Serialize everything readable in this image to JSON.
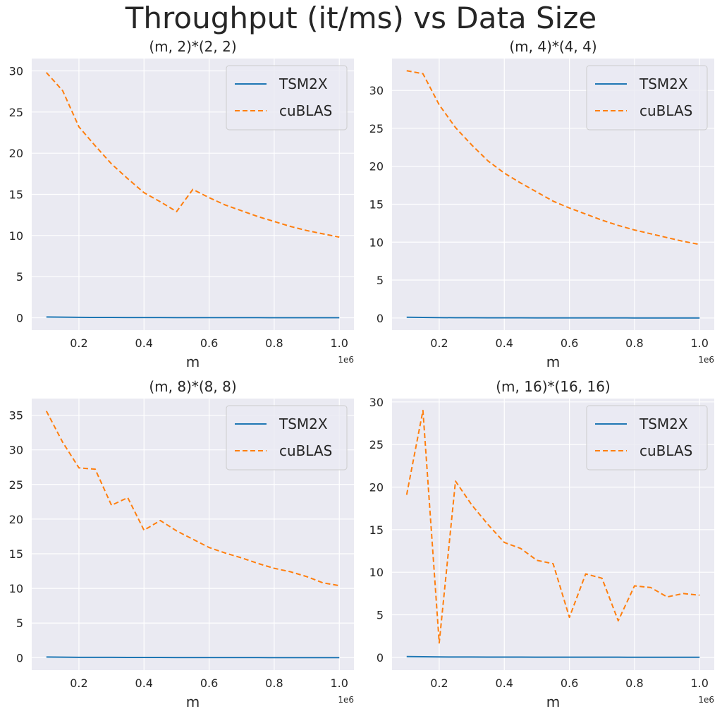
{
  "figure": {
    "title": "Throughput (it/ms) vs Data Size"
  },
  "colors": {
    "background": "#eaeaf2",
    "grid": "#ffffff",
    "tsm2x": "#1f77b4",
    "cublas": "#ff7f0e",
    "text": "#262626"
  },
  "chart_data": [
    {
      "type": "line",
      "title": "(m, 2)*(2, 2)",
      "xlabel": "m",
      "ylabel": "",
      "x_offset_label": "1e6",
      "xlim": [
        0.055,
        1.045
      ],
      "ylim": [
        -1.5,
        31.5
      ],
      "xticks": [
        0.2,
        0.4,
        0.6,
        0.8,
        1.0
      ],
      "xtick_labels": [
        "0.2",
        "0.4",
        "0.6",
        "0.8",
        "1.0"
      ],
      "yticks": [
        0,
        5,
        10,
        15,
        20,
        25,
        30
      ],
      "legend_position": "upper right",
      "x": [
        0.1,
        0.15,
        0.2,
        0.25,
        0.3,
        0.35,
        0.4,
        0.45,
        0.5,
        0.55,
        0.6,
        0.65,
        0.7,
        0.75,
        0.8,
        0.85,
        0.9,
        0.95,
        1.0
      ],
      "series": [
        {
          "name": "TSM2X",
          "style": "solid",
          "values": [
            0.1,
            0.07,
            0.05,
            0.04,
            0.04,
            0.03,
            0.03,
            0.03,
            0.02,
            0.02,
            0.02,
            0.02,
            0.02,
            0.02,
            0.01,
            0.01,
            0.01,
            0.01,
            0.01
          ]
        },
        {
          "name": "cuBLAS",
          "style": "dashed",
          "values": [
            29.8,
            27.6,
            23.2,
            20.9,
            18.7,
            16.9,
            15.2,
            14.1,
            12.9,
            15.6,
            14.6,
            13.7,
            13.0,
            12.3,
            11.7,
            11.1,
            10.6,
            10.2,
            9.8
          ]
        }
      ]
    },
    {
      "type": "line",
      "title": "(m, 4)*(4, 4)",
      "xlabel": "m",
      "ylabel": "",
      "x_offset_label": "1e6",
      "xlim": [
        0.055,
        1.045
      ],
      "ylim": [
        -1.6,
        34.2
      ],
      "xticks": [
        0.2,
        0.4,
        0.6,
        0.8,
        1.0
      ],
      "xtick_labels": [
        "0.2",
        "0.4",
        "0.6",
        "0.8",
        "1.0"
      ],
      "yticks": [
        0,
        5,
        10,
        15,
        20,
        25,
        30
      ],
      "legend_position": "upper right",
      "x": [
        0.1,
        0.15,
        0.2,
        0.25,
        0.3,
        0.35,
        0.4,
        0.45,
        0.5,
        0.55,
        0.6,
        0.65,
        0.7,
        0.75,
        0.8,
        0.85,
        0.9,
        0.95,
        1.0
      ],
      "series": [
        {
          "name": "TSM2X",
          "style": "solid",
          "values": [
            0.1,
            0.07,
            0.05,
            0.04,
            0.04,
            0.03,
            0.03,
            0.03,
            0.02,
            0.02,
            0.02,
            0.02,
            0.02,
            0.02,
            0.01,
            0.01,
            0.01,
            0.01,
            0.01
          ]
        },
        {
          "name": "cuBLAS",
          "style": "dashed",
          "values": [
            32.6,
            32.2,
            28.1,
            25.1,
            22.8,
            20.7,
            19.1,
            17.8,
            16.6,
            15.4,
            14.5,
            13.7,
            12.9,
            12.2,
            11.6,
            11.1,
            10.6,
            10.1,
            9.7
          ]
        }
      ]
    },
    {
      "type": "line",
      "title": "(m, 8)*(8, 8)",
      "xlabel": "m",
      "ylabel": "",
      "x_offset_label": "1e6",
      "xlim": [
        0.055,
        1.045
      ],
      "ylim": [
        -1.8,
        37.4
      ],
      "xticks": [
        0.2,
        0.4,
        0.6,
        0.8,
        1.0
      ],
      "xtick_labels": [
        "0.2",
        "0.4",
        "0.6",
        "0.8",
        "1.0"
      ],
      "yticks": [
        0,
        5,
        10,
        15,
        20,
        25,
        30,
        35
      ],
      "legend_position": "upper right",
      "x": [
        0.1,
        0.15,
        0.2,
        0.25,
        0.3,
        0.35,
        0.4,
        0.45,
        0.5,
        0.55,
        0.6,
        0.65,
        0.7,
        0.75,
        0.8,
        0.85,
        0.9,
        0.95,
        1.0
      ],
      "series": [
        {
          "name": "TSM2X",
          "style": "solid",
          "values": [
            0.1,
            0.07,
            0.05,
            0.04,
            0.04,
            0.03,
            0.03,
            0.03,
            0.02,
            0.02,
            0.02,
            0.02,
            0.02,
            0.02,
            0.01,
            0.01,
            0.01,
            0.01,
            0.01
          ]
        },
        {
          "name": "cuBLAS",
          "style": "dashed",
          "values": [
            35.6,
            31.1,
            27.4,
            27.2,
            22.0,
            23.1,
            18.4,
            19.8,
            18.3,
            17.1,
            15.9,
            15.1,
            14.4,
            13.6,
            12.9,
            12.4,
            11.7,
            10.8,
            10.4
          ]
        }
      ]
    },
    {
      "type": "line",
      "title": "(m, 16)*(16, 16)",
      "xlabel": "m",
      "ylabel": "",
      "x_offset_label": "1e6",
      "xlim": [
        0.055,
        1.045
      ],
      "ylim": [
        -1.5,
        30.4
      ],
      "xticks": [
        0.2,
        0.4,
        0.6,
        0.8,
        1.0
      ],
      "xtick_labels": [
        "0.2",
        "0.4",
        "0.6",
        "0.8",
        "1.0"
      ],
      "yticks": [
        0,
        5,
        10,
        15,
        20,
        25,
        30
      ],
      "legend_position": "upper right",
      "x": [
        0.1,
        0.15,
        0.2,
        0.25,
        0.3,
        0.35,
        0.4,
        0.45,
        0.5,
        0.55,
        0.6,
        0.65,
        0.7,
        0.75,
        0.8,
        0.85,
        0.9,
        0.95,
        1.0
      ],
      "series": [
        {
          "name": "TSM2X",
          "style": "solid",
          "values": [
            0.1,
            0.07,
            0.05,
            0.04,
            0.04,
            0.03,
            0.03,
            0.03,
            0.02,
            0.02,
            0.02,
            0.02,
            0.02,
            0.02,
            0.01,
            0.01,
            0.01,
            0.01,
            0.01
          ]
        },
        {
          "name": "cuBLAS",
          "style": "dashed",
          "values": [
            19.1,
            29.0,
            1.7,
            20.7,
            17.9,
            15.6,
            13.5,
            12.8,
            11.4,
            11.0,
            4.7,
            9.8,
            9.3,
            4.3,
            8.4,
            8.2,
            7.1,
            7.5,
            7.3
          ]
        }
      ]
    }
  ]
}
